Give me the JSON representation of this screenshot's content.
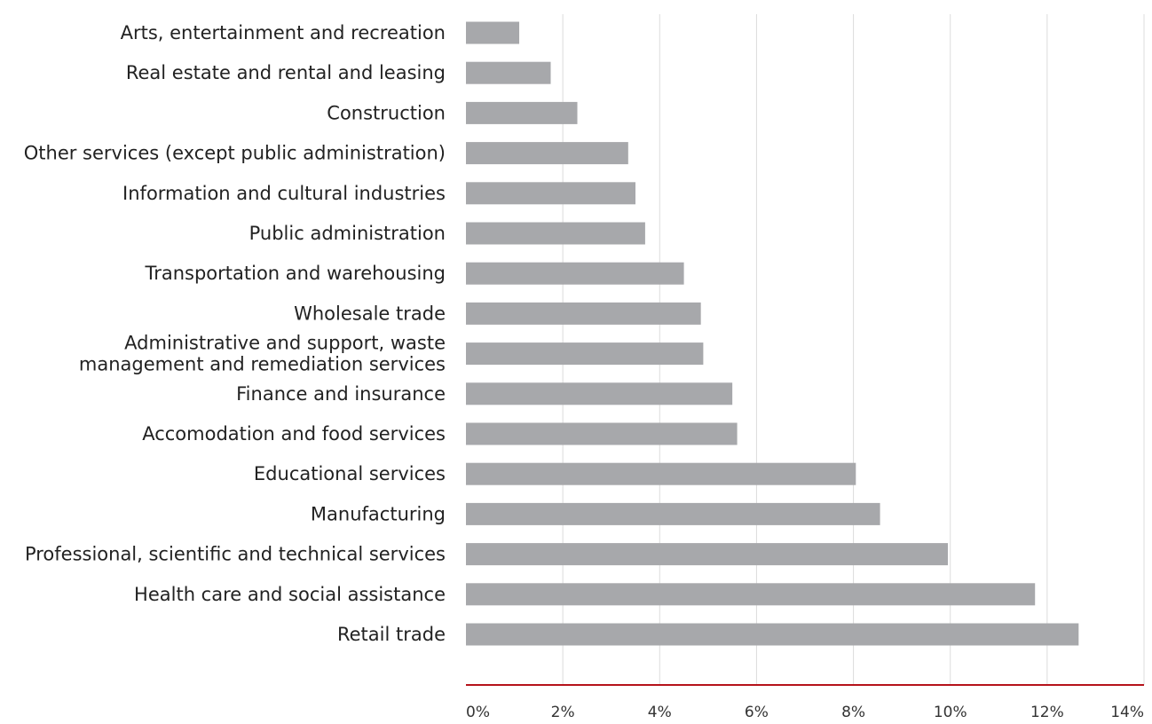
{
  "chart_data": {
    "type": "bar",
    "orientation": "horizontal",
    "title": "",
    "xlabel": "",
    "ylabel": "",
    "categories": [
      [
        "Arts, entertainment and recreation"
      ],
      [
        "Real estate and rental and leasing"
      ],
      [
        "Construction"
      ],
      [
        "Other services (except public administration)"
      ],
      [
        "Information and cultural industries"
      ],
      [
        "Public administration"
      ],
      [
        "Transportation and warehousing"
      ],
      [
        "Wholesale trade"
      ],
      [
        "Administrative and support, waste",
        "management and remediation services"
      ],
      [
        "Finance and insurance"
      ],
      [
        "Accomodation and food services"
      ],
      [
        "Educational services"
      ],
      [
        "Manufacturing"
      ],
      [
        "Professional, scientific and technical services"
      ],
      [
        "Health care and social assistance"
      ],
      [
        "Retail trade"
      ]
    ],
    "values": [
      1.1,
      1.75,
      2.3,
      3.35,
      3.5,
      3.7,
      4.5,
      4.85,
      4.9,
      5.5,
      5.6,
      8.05,
      8.55,
      9.95,
      11.75,
      12.65
    ],
    "xlim": [
      0,
      14
    ],
    "xticks": [
      0,
      2,
      4,
      6,
      8,
      10,
      12,
      14
    ],
    "tick_suffix": "%",
    "grid": "vertical",
    "colors": {
      "bar": "#a7a8ab",
      "grid": "#dcdcdc",
      "axis": "#b5121b",
      "label": "#222222",
      "tick": "#333333"
    }
  }
}
